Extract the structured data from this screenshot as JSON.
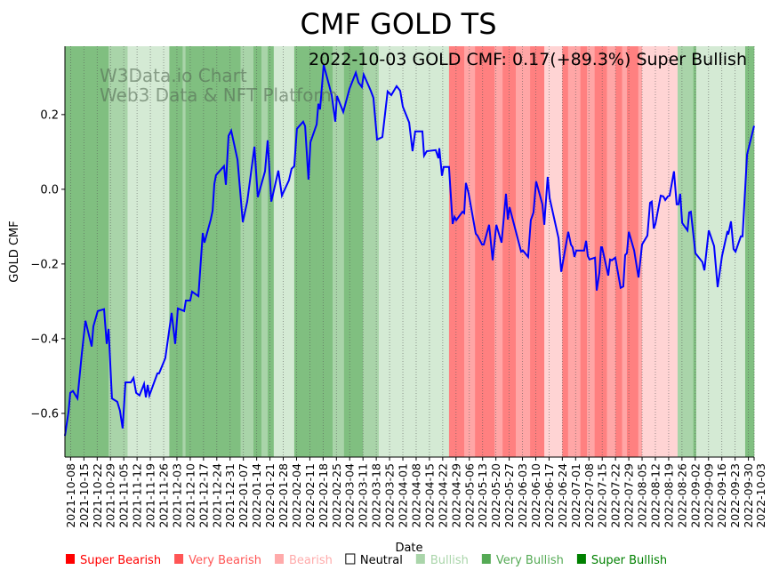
{
  "chart_data": {
    "type": "line",
    "title": "CMF GOLD TS",
    "annotation": "2022-10-03 GOLD CMF: 0.17(+89.3%) Super Bullish",
    "watermark": [
      "W3Data.io Chart",
      "Web3 Data & NFT Platform"
    ],
    "xlabel": "Date",
    "ylabel": "GOLD CMF",
    "x_unit": "days since 2021-10-05",
    "x_start_date": "2021-10-05",
    "xlim": [
      0,
      363
    ],
    "ylim": [
      -0.717,
      0.383
    ],
    "yticks": [
      0.2,
      0.0,
      -0.2,
      -0.4,
      -0.6
    ],
    "ytick_labels": [
      "0.2",
      "0.0",
      "−0.2",
      "−0.4",
      "−0.6"
    ],
    "xticks": [
      3,
      10,
      17,
      24,
      31,
      38,
      45,
      52,
      59,
      66,
      73,
      80,
      87,
      94,
      101,
      108,
      115,
      122,
      129,
      136,
      143,
      150,
      157,
      164,
      171,
      178,
      185,
      192,
      199,
      206,
      213,
      220,
      227,
      234,
      241,
      248,
      255,
      262,
      269,
      276,
      283,
      290,
      297,
      304,
      311,
      318,
      325,
      332,
      339,
      346,
      353,
      360,
      363
    ],
    "xtick_labels": [
      "2021-10-08",
      "2021-10-15",
      "2021-10-22",
      "2021-10-29",
      "2021-11-05",
      "2021-11-12",
      "2021-11-19",
      "2021-11-26",
      "2021-12-03",
      "2021-12-10",
      "2021-12-17",
      "2021-12-24",
      "2021-12-31",
      "2022-01-07",
      "2022-01-14",
      "2022-01-21",
      "2022-01-28",
      "2022-02-04",
      "2022-02-11",
      "2022-02-18",
      "2022-02-25",
      "2022-03-04",
      "2022-03-11",
      "2022-03-18",
      "2022-03-25",
      "2022-04-01",
      "2022-04-08",
      "2022-04-15",
      "2022-04-22",
      "2022-04-29",
      "2022-05-06",
      "2022-05-13",
      "2022-05-20",
      "2022-05-27",
      "2022-06-03",
      "2022-06-10",
      "2022-06-17",
      "2022-06-24",
      "2022-07-01",
      "2022-07-08",
      "2022-07-15",
      "2022-07-22",
      "2022-07-29",
      "2022-08-05",
      "2022-08-12",
      "2022-08-19",
      "2022-08-26",
      "2022-09-02",
      "2022-09-09",
      "2022-09-16",
      "2022-09-23",
      "2022-09-30",
      "2022-10-03"
    ],
    "series": [
      {
        "name": "GOLD CMF",
        "color": "#0000ff",
        "points": [
          [
            0,
            -0.66
          ],
          [
            1.9,
            -0.595
          ],
          [
            2.8,
            -0.545
          ],
          [
            4.2,
            -0.54
          ],
          [
            6.6,
            -0.56
          ],
          [
            8.9,
            -0.44
          ],
          [
            10.8,
            -0.352
          ],
          [
            14.1,
            -0.421
          ],
          [
            15,
            -0.367
          ],
          [
            17.3,
            -0.326
          ],
          [
            20.6,
            -0.321
          ],
          [
            22,
            -0.414
          ],
          [
            23,
            -0.374
          ],
          [
            24.8,
            -0.56
          ],
          [
            27.6,
            -0.569
          ],
          [
            29,
            -0.593
          ],
          [
            30.4,
            -0.64
          ],
          [
            31.9,
            -0.517
          ],
          [
            34.7,
            -0.517
          ],
          [
            36.1,
            -0.505
          ],
          [
            37.5,
            -0.545
          ],
          [
            39.3,
            -0.552
          ],
          [
            41.7,
            -0.521
          ],
          [
            42.6,
            -0.557
          ],
          [
            43.6,
            -0.524
          ],
          [
            44.5,
            -0.552
          ],
          [
            48.7,
            -0.493
          ],
          [
            49.6,
            -0.493
          ],
          [
            52.9,
            -0.452
          ],
          [
            56.2,
            -0.331
          ],
          [
            58.1,
            -0.414
          ],
          [
            59.5,
            -0.319
          ],
          [
            62.8,
            -0.326
          ],
          [
            63.7,
            -0.298
          ],
          [
            66,
            -0.298
          ],
          [
            67,
            -0.274
          ],
          [
            70.3,
            -0.286
          ],
          [
            72.6,
            -0.117
          ],
          [
            73.5,
            -0.143
          ],
          [
            76.8,
            -0.081
          ],
          [
            77.8,
            -0.057
          ],
          [
            78.7,
            0.014
          ],
          [
            79.6,
            0.038
          ],
          [
            83.8,
            0.062
          ],
          [
            84.8,
            0.012
          ],
          [
            86.2,
            0.143
          ],
          [
            87.6,
            0.157
          ],
          [
            90.9,
            0.079
          ],
          [
            93.7,
            -0.088
          ],
          [
            96,
            -0.033
          ],
          [
            99.8,
            0.114
          ],
          [
            101.6,
            -0.021
          ],
          [
            105.4,
            0.048
          ],
          [
            106.8,
            0.131
          ],
          [
            108.7,
            -0.033
          ],
          [
            112.4,
            0.05
          ],
          [
            114.3,
            -0.017
          ],
          [
            118,
            0.024
          ],
          [
            119.4,
            0.055
          ],
          [
            120.8,
            0.062
          ],
          [
            122.2,
            0.162
          ],
          [
            125.5,
            0.181
          ],
          [
            126.5,
            0.169
          ],
          [
            128.3,
            0.026
          ],
          [
            129.3,
            0.126
          ],
          [
            132.6,
            0.174
          ],
          [
            133.5,
            0.229
          ],
          [
            134.4,
            0.214
          ],
          [
            136.3,
            0.333
          ],
          [
            140.5,
            0.252
          ],
          [
            142.4,
            0.181
          ],
          [
            143.3,
            0.25
          ],
          [
            146.6,
            0.207
          ],
          [
            149.9,
            0.269
          ],
          [
            153.2,
            0.312
          ],
          [
            154.6,
            0.286
          ],
          [
            156.4,
            0.274
          ],
          [
            157.4,
            0.307
          ],
          [
            161.1,
            0.264
          ],
          [
            162.5,
            0.245
          ],
          [
            164.4,
            0.133
          ],
          [
            167.2,
            0.14
          ],
          [
            170,
            0.262
          ],
          [
            171.9,
            0.252
          ],
          [
            174.7,
            0.276
          ],
          [
            176.6,
            0.264
          ],
          [
            178,
            0.221
          ],
          [
            181.3,
            0.179
          ],
          [
            183.1,
            0.102
          ],
          [
            184.5,
            0.155
          ],
          [
            188.3,
            0.155
          ],
          [
            189.2,
            0.09
          ],
          [
            190.6,
            0.102
          ],
          [
            195.3,
            0.105
          ],
          [
            196.7,
            0.083
          ],
          [
            197.2,
            0.11
          ],
          [
            198.6,
            0.036
          ],
          [
            199.5,
            0.06
          ],
          [
            202.3,
            0.06
          ],
          [
            204.2,
            -0.093
          ],
          [
            205.2,
            -0.074
          ],
          [
            206.1,
            -0.083
          ],
          [
            209.4,
            -0.06
          ],
          [
            210.3,
            -0.064
          ],
          [
            211.2,
            0.017
          ],
          [
            212.6,
            -0.01
          ],
          [
            216.4,
            -0.119
          ],
          [
            217.3,
            -0.124
          ],
          [
            219.7,
            -0.148
          ],
          [
            220.6,
            -0.148
          ],
          [
            223.4,
            -0.095
          ],
          [
            225.3,
            -0.19
          ],
          [
            227.2,
            -0.095
          ],
          [
            230,
            -0.143
          ],
          [
            232.3,
            -0.012
          ],
          [
            233.3,
            -0.081
          ],
          [
            234.2,
            -0.048
          ],
          [
            240.3,
            -0.167
          ],
          [
            241.2,
            -0.164
          ],
          [
            244,
            -0.181
          ],
          [
            245.4,
            -0.083
          ],
          [
            246.8,
            -0.062
          ],
          [
            248.2,
            0.021
          ],
          [
            251.5,
            -0.04
          ],
          [
            252.5,
            -0.095
          ],
          [
            252.9,
            -0.064
          ],
          [
            254.3,
            0.033
          ],
          [
            255.3,
            -0.024
          ],
          [
            260,
            -0.131
          ],
          [
            261.4,
            -0.221
          ],
          [
            265.1,
            -0.114
          ],
          [
            266.5,
            -0.148
          ],
          [
            267.4,
            -0.155
          ],
          [
            268.4,
            -0.181
          ],
          [
            269.3,
            -0.164
          ],
          [
            273.5,
            -0.164
          ],
          [
            274.5,
            -0.138
          ],
          [
            275.4,
            -0.179
          ],
          [
            276.3,
            -0.188
          ],
          [
            279.2,
            -0.183
          ],
          [
            280.1,
            -0.271
          ],
          [
            281.5,
            -0.224
          ],
          [
            282.4,
            -0.155
          ],
          [
            282.9,
            -0.155
          ],
          [
            286.2,
            -0.231
          ],
          [
            287.1,
            -0.188
          ],
          [
            288.1,
            -0.19
          ],
          [
            289.9,
            -0.183
          ],
          [
            292.7,
            -0.264
          ],
          [
            294.1,
            -0.26
          ],
          [
            295.1,
            -0.176
          ],
          [
            296,
            -0.171
          ],
          [
            297,
            -0.114
          ],
          [
            299.8,
            -0.164
          ],
          [
            302.1,
            -0.236
          ],
          [
            304,
            -0.148
          ],
          [
            306.8,
            -0.124
          ],
          [
            308.2,
            -0.036
          ],
          [
            309.1,
            -0.033
          ],
          [
            310.1,
            -0.105
          ],
          [
            311,
            -0.093
          ],
          [
            313.8,
            -0.017
          ],
          [
            315.2,
            -0.019
          ],
          [
            316.2,
            -0.029
          ],
          [
            317.6,
            -0.019
          ],
          [
            318.5,
            -0.017
          ],
          [
            320.8,
            0.048
          ],
          [
            322.2,
            -0.04
          ],
          [
            323.2,
            -0.04
          ],
          [
            324.1,
            -0.012
          ],
          [
            325.1,
            -0.09
          ],
          [
            327.9,
            -0.11
          ],
          [
            328.8,
            -0.062
          ],
          [
            329.7,
            -0.06
          ],
          [
            332.1,
            -0.171
          ],
          [
            335.8,
            -0.195
          ],
          [
            336.8,
            -0.217
          ],
          [
            339.1,
            -0.11
          ],
          [
            341.9,
            -0.152
          ],
          [
            343.8,
            -0.262
          ],
          [
            346.1,
            -0.179
          ],
          [
            349,
            -0.112
          ],
          [
            349.4,
            -0.121
          ],
          [
            350.8,
            -0.086
          ],
          [
            352.2,
            -0.16
          ],
          [
            353.2,
            -0.167
          ],
          [
            356,
            -0.126
          ],
          [
            356.9,
            -0.126
          ],
          [
            359.3,
            0.093
          ],
          [
            363,
            0.17
          ]
        ]
      }
    ],
    "regime_bands": [
      [
        0,
        23,
        "super_bullish"
      ],
      [
        23,
        33,
        "very_bullish"
      ],
      [
        33,
        55,
        "bullish"
      ],
      [
        55,
        62,
        "super_bullish"
      ],
      [
        62,
        63.5,
        "very_bullish"
      ],
      [
        63.5,
        92.5,
        "super_bullish"
      ],
      [
        92.5,
        99.3,
        "very_bullish"
      ],
      [
        99.3,
        103.5,
        "super_bullish"
      ],
      [
        103.5,
        106.8,
        "very_bullish"
      ],
      [
        106.8,
        110,
        "super_bullish"
      ],
      [
        110,
        120.8,
        "bullish"
      ],
      [
        120.8,
        132.5,
        "super_bullish"
      ],
      [
        132.5,
        141,
        "super_bullish"
      ],
      [
        141,
        147,
        "very_bullish"
      ],
      [
        147,
        157,
        "super_bullish"
      ],
      [
        157,
        165.3,
        "very_bullish"
      ],
      [
        165.3,
        202.3,
        "bullish"
      ],
      [
        202.3,
        210.3,
        "super_bearish"
      ],
      [
        210.3,
        216,
        "very_bearish"
      ],
      [
        216,
        226.3,
        "super_bearish"
      ],
      [
        226.3,
        230.5,
        "very_bearish"
      ],
      [
        230.5,
        237.5,
        "super_bearish"
      ],
      [
        237.5,
        245,
        "very_bearish"
      ],
      [
        245,
        252.5,
        "super_bearish"
      ],
      [
        252.5,
        262,
        "bearish"
      ],
      [
        262,
        265,
        "super_bearish"
      ],
      [
        265,
        271.5,
        "very_bearish"
      ],
      [
        271.5,
        275,
        "super_bearish"
      ],
      [
        275,
        279,
        "very_bearish"
      ],
      [
        279,
        285.5,
        "super_bearish"
      ],
      [
        285.5,
        290,
        "very_bearish"
      ],
      [
        290,
        293.5,
        "super_bearish"
      ],
      [
        293.5,
        296,
        "very_bearish"
      ],
      [
        296,
        302,
        "super_bearish"
      ],
      [
        302,
        304,
        "very_bearish"
      ],
      [
        304,
        322.7,
        "bearish"
      ],
      [
        322.7,
        331,
        "very_bullish"
      ],
      [
        331,
        332.5,
        "super_bullish"
      ],
      [
        332.5,
        358.3,
        "bullish"
      ],
      [
        358.3,
        363,
        "super_bullish"
      ]
    ],
    "legend_placement": "bottom",
    "legend": [
      {
        "key": "super_bearish",
        "label": "Super Bearish",
        "color": "#ff0000",
        "bg": "#ff8080"
      },
      {
        "key": "very_bearish",
        "label": "Very Bearish",
        "color": "#ff5555",
        "bg": "#ffa6a6"
      },
      {
        "key": "bearish",
        "label": "Bearish",
        "color": "#ffaaaa",
        "bg": "#ffd4d4"
      },
      {
        "key": "neutral",
        "label": "Neutral",
        "color": "#ffffff",
        "bg": "#ffffff"
      },
      {
        "key": "bullish",
        "label": "Bullish",
        "color": "#aad5aa",
        "bg": "#d4ead4"
      },
      {
        "key": "very_bullish",
        "label": "Very Bullish",
        "color": "#55aa55",
        "bg": "#a9d4a9"
      },
      {
        "key": "super_bullish",
        "label": "Super Bullish",
        "color": "#008000",
        "bg": "#80bf80"
      }
    ],
    "grid": "x-dotted"
  }
}
